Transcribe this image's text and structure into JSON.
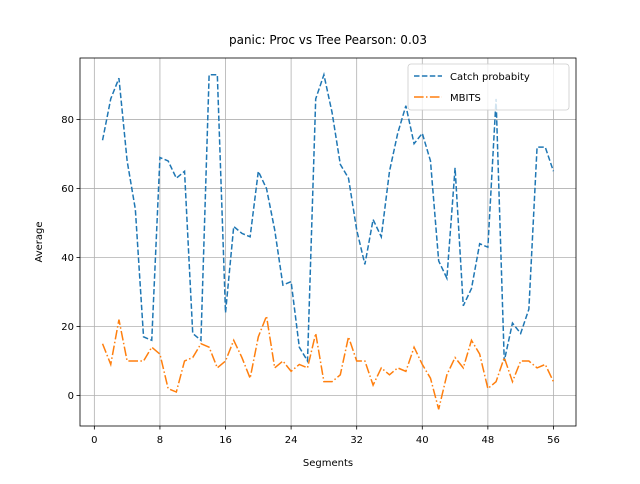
{
  "chart_data": {
    "type": "line",
    "title": "panic: Proc vs Tree Pearson: 0.03",
    "xlabel": "Segments",
    "ylabel": "Average",
    "x": [
      1,
      2,
      3,
      4,
      5,
      6,
      7,
      8,
      9,
      10,
      11,
      12,
      13,
      14,
      15,
      16,
      17,
      18,
      19,
      20,
      21,
      22,
      23,
      24,
      25,
      26,
      27,
      28,
      29,
      30,
      31,
      32,
      33,
      34,
      35,
      36,
      37,
      38,
      39,
      40,
      41,
      42,
      43,
      44,
      45,
      46,
      47,
      48,
      49,
      50,
      51,
      52,
      53,
      54,
      55,
      56
    ],
    "series": [
      {
        "name": "Catch probabity",
        "color": "#1f77b4",
        "dash": "5.5,2.4",
        "values": [
          74,
          86,
          92,
          68,
          54,
          17,
          16,
          69,
          68,
          63,
          65,
          18,
          16,
          93,
          93,
          24,
          49,
          47,
          46,
          65,
          60,
          48,
          32,
          33,
          14,
          10,
          86,
          93,
          82,
          67,
          63,
          48,
          38,
          51,
          46,
          65,
          76,
          84,
          73,
          76,
          68,
          39,
          34,
          66,
          26,
          31,
          44,
          43,
          86,
          10,
          21,
          18,
          25,
          72,
          72,
          65
        ]
      },
      {
        "name": "MBITS",
        "color": "#ff7f0e",
        "dash": "9.6,2.4,1.5,2.4",
        "values": [
          15,
          9,
          22,
          10,
          10,
          10,
          14,
          12,
          2,
          1,
          10,
          11,
          15,
          14,
          8,
          10,
          16,
          11,
          5,
          17,
          23,
          8,
          10,
          7,
          9,
          8,
          18,
          4,
          4,
          6,
          17,
          10,
          10,
          3,
          8,
          6,
          8,
          7,
          14,
          9,
          5,
          -4,
          6,
          11,
          8,
          16,
          12,
          2,
          4,
          11,
          4,
          10,
          10,
          8,
          9,
          4
        ]
      }
    ],
    "xlim": [
      -1.75,
      58.75
    ],
    "xticks": [
      0,
      8,
      16,
      24,
      32,
      40,
      48,
      56
    ],
    "ylim": [
      -8.85,
      97.85
    ],
    "yticks": [
      0,
      20,
      40,
      60,
      80
    ],
    "grid": true,
    "legend": "upper right"
  }
}
